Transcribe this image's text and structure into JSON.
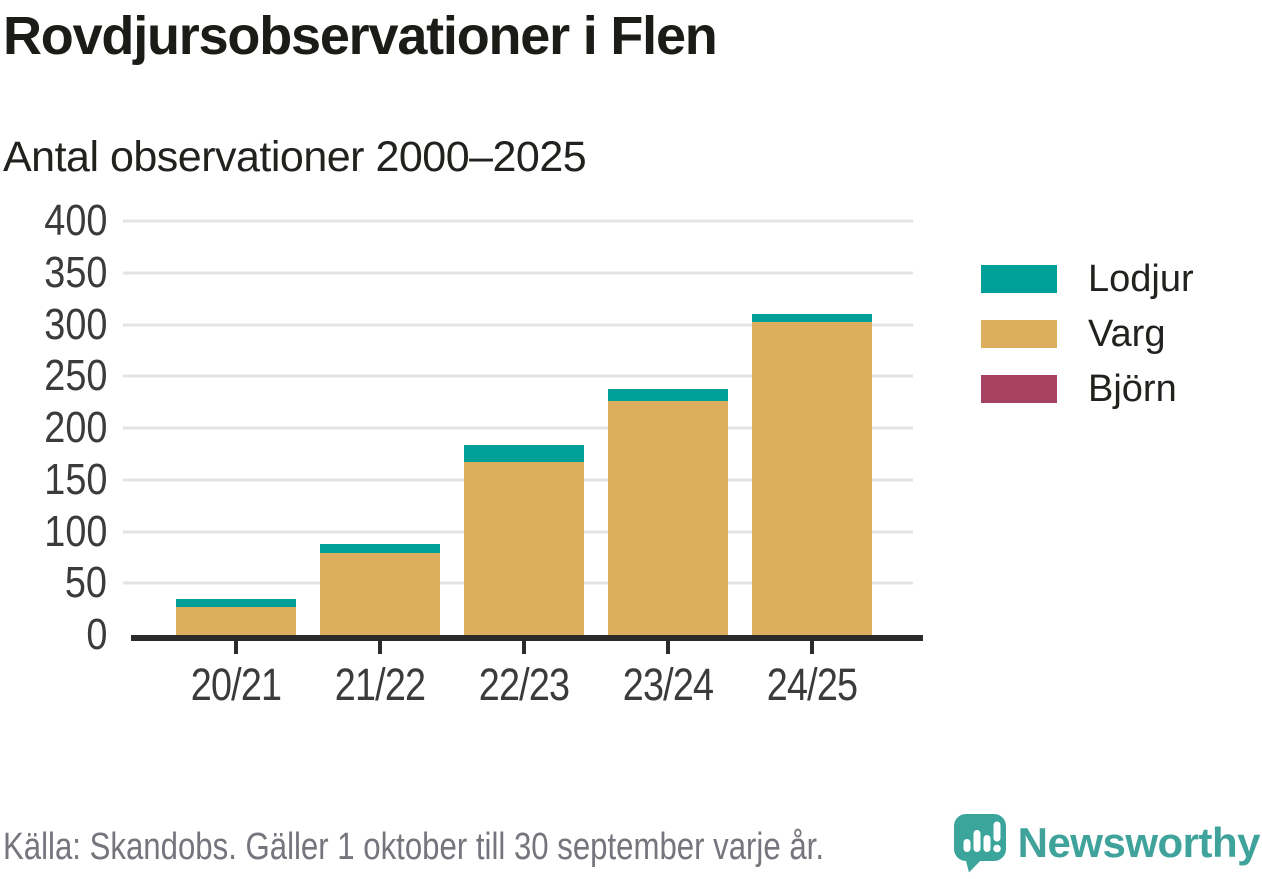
{
  "header": {
    "title": "Rovdjursobservationer i Flen",
    "subtitle": "Antal observationer 2000–2025"
  },
  "chart_data": {
    "type": "bar",
    "stacked": true,
    "title": "Rovdjursobservationer i Flen",
    "subtitle": "Antal observationer 2000–2025",
    "categories": [
      "20/21",
      "21/22",
      "22/23",
      "23/24",
      "24/25"
    ],
    "series": [
      {
        "name": "Lodjur",
        "color": "#00a099",
        "values": [
          8,
          9,
          17,
          12,
          8
        ]
      },
      {
        "name": "Varg",
        "color": "#dcae5e",
        "values": [
          27,
          79,
          167,
          226,
          302
        ]
      },
      {
        "name": "Björn",
        "color": "#a64260",
        "values": [
          0,
          0,
          0,
          0,
          0
        ]
      }
    ],
    "totals": [
      35,
      88,
      184,
      238,
      310
    ],
    "xlabel": "",
    "ylabel": "",
    "ylim": [
      0,
      400
    ],
    "yticks": [
      0,
      50,
      100,
      150,
      200,
      250,
      300,
      350,
      400
    ],
    "grid": "horizontal",
    "legend_position": "right",
    "gridline_color": "#e4e4e4",
    "axis_color": "#2b2b2b",
    "tick_label_color": "#3b3b3b"
  },
  "footer": {
    "source": "Källa: Skandobs. Gäller 1 oktober till 30 september varje år.",
    "brand": "Newsworthy",
    "brand_color": "#3fa39b",
    "brand_icon": "newsworthy-speech-bubble-chart-icon"
  }
}
